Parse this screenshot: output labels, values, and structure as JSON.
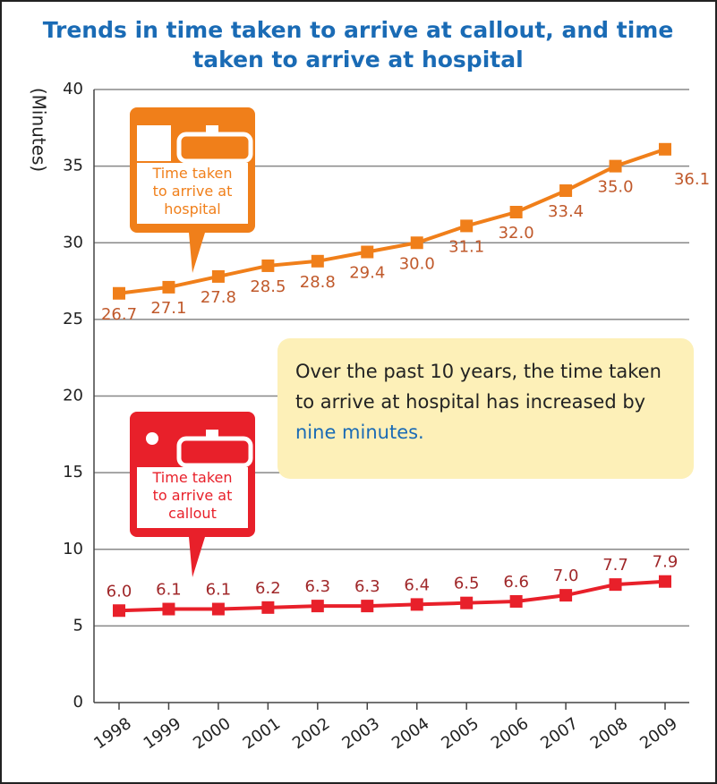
{
  "chart_data": {
    "type": "line",
    "title": "Trends in time taken to arrive at callout, and time taken to arrive at hospital",
    "y_label": "(Minutes)",
    "categories": [
      "1998",
      "1999",
      "2000",
      "2001",
      "2002",
      "2003",
      "2004",
      "2005",
      "2006",
      "2007",
      "2008",
      "2009"
    ],
    "series": [
      {
        "name": "Time taken to arrive at hospital",
        "color": "#f07f1a",
        "label_color": "#c0592b",
        "values": [
          26.7,
          27.1,
          27.8,
          28.5,
          28.8,
          29.4,
          30.0,
          31.1,
          32.0,
          33.4,
          35.0,
          36.1
        ],
        "value_labels": [
          "26.7",
          "27.1",
          "27.8",
          "28.5",
          "28.8",
          "29.4",
          "30.0",
          "31.1",
          "32.0",
          "33.4",
          "35.0",
          "36.1"
        ]
      },
      {
        "name": "Time taken to arrive at callout",
        "color": "#e8202a",
        "label_color": "#a0282a",
        "values": [
          6.0,
          6.1,
          6.1,
          6.2,
          6.3,
          6.3,
          6.4,
          6.5,
          6.6,
          7.0,
          7.7,
          7.9
        ],
        "value_labels": [
          "6.0",
          "6.1",
          "6.1",
          "6.2",
          "6.3",
          "6.3",
          "6.4",
          "6.5",
          "6.6",
          "7.0",
          "7.7",
          "7.9"
        ]
      }
    ],
    "ylim": [
      0,
      40
    ],
    "yticks": [
      0,
      5,
      10,
      15,
      20,
      25,
      30,
      35,
      40
    ],
    "grid": true,
    "annotation": {
      "text": "Over the past 10 years, the time taken to arrive at hospital has increased by",
      "highlight": "nine minutes."
    }
  }
}
